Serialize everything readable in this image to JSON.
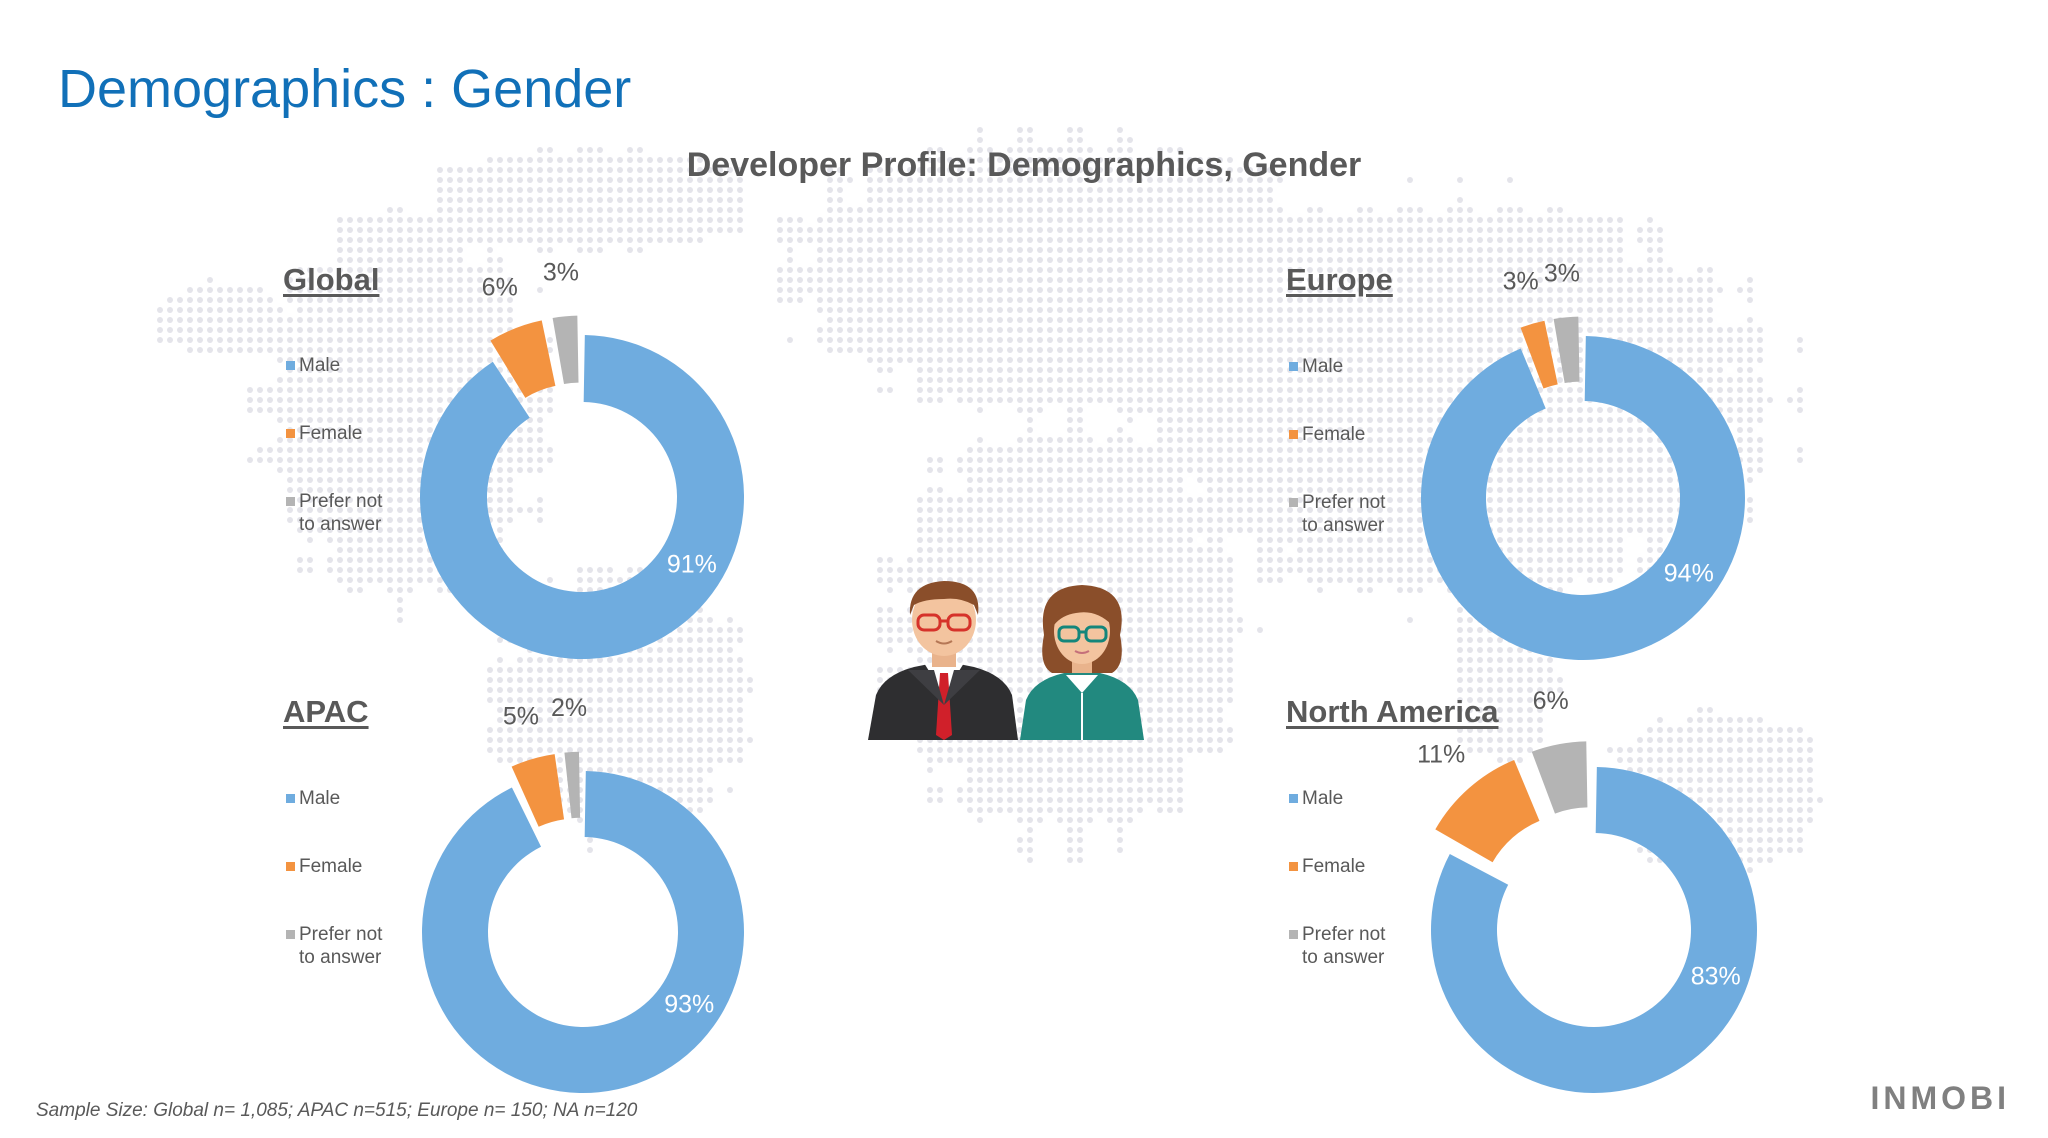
{
  "page": {
    "title": "Demographics : Gender"
  },
  "chart_heading": "Developer Profile: Demographics, Gender",
  "colors": {
    "male": "#6facdf",
    "female": "#f39340",
    "prefer_not": "#b4b4b4",
    "title": "#1170b8"
  },
  "chart_data": [
    {
      "type": "pie",
      "title": "Global",
      "categories": [
        "Male",
        "Female",
        "Prefer not\nto answer"
      ],
      "values": [
        91,
        6,
        3
      ],
      "value_labels": [
        "91%",
        "6%",
        "3%"
      ]
    },
    {
      "type": "pie",
      "title": "Europe",
      "categories": [
        "Male",
        "Female",
        "Prefer not\nto answer"
      ],
      "values": [
        94,
        3,
        3
      ],
      "value_labels": [
        "94%",
        "3%",
        "3%"
      ]
    },
    {
      "type": "pie",
      "title": "APAC",
      "categories": [
        "Male",
        "Female",
        "Prefer not\nto answer"
      ],
      "values": [
        93,
        5,
        2
      ],
      "value_labels": [
        "93%",
        "5%",
        "2%"
      ]
    },
    {
      "type": "pie",
      "title": "North America",
      "categories": [
        "Male",
        "Female",
        "Prefer not\nto answer"
      ],
      "values": [
        83,
        11,
        6
      ],
      "value_labels": [
        "83%",
        "11%",
        "6%"
      ]
    }
  ],
  "footnote": "Sample Size: Global  n= 1,085; APAC n=515; Europe n= 150; NA n=120",
  "brand": "INMOBI",
  "icons": {
    "map": "world-map-dots",
    "people": "male-female-developer-avatars"
  }
}
